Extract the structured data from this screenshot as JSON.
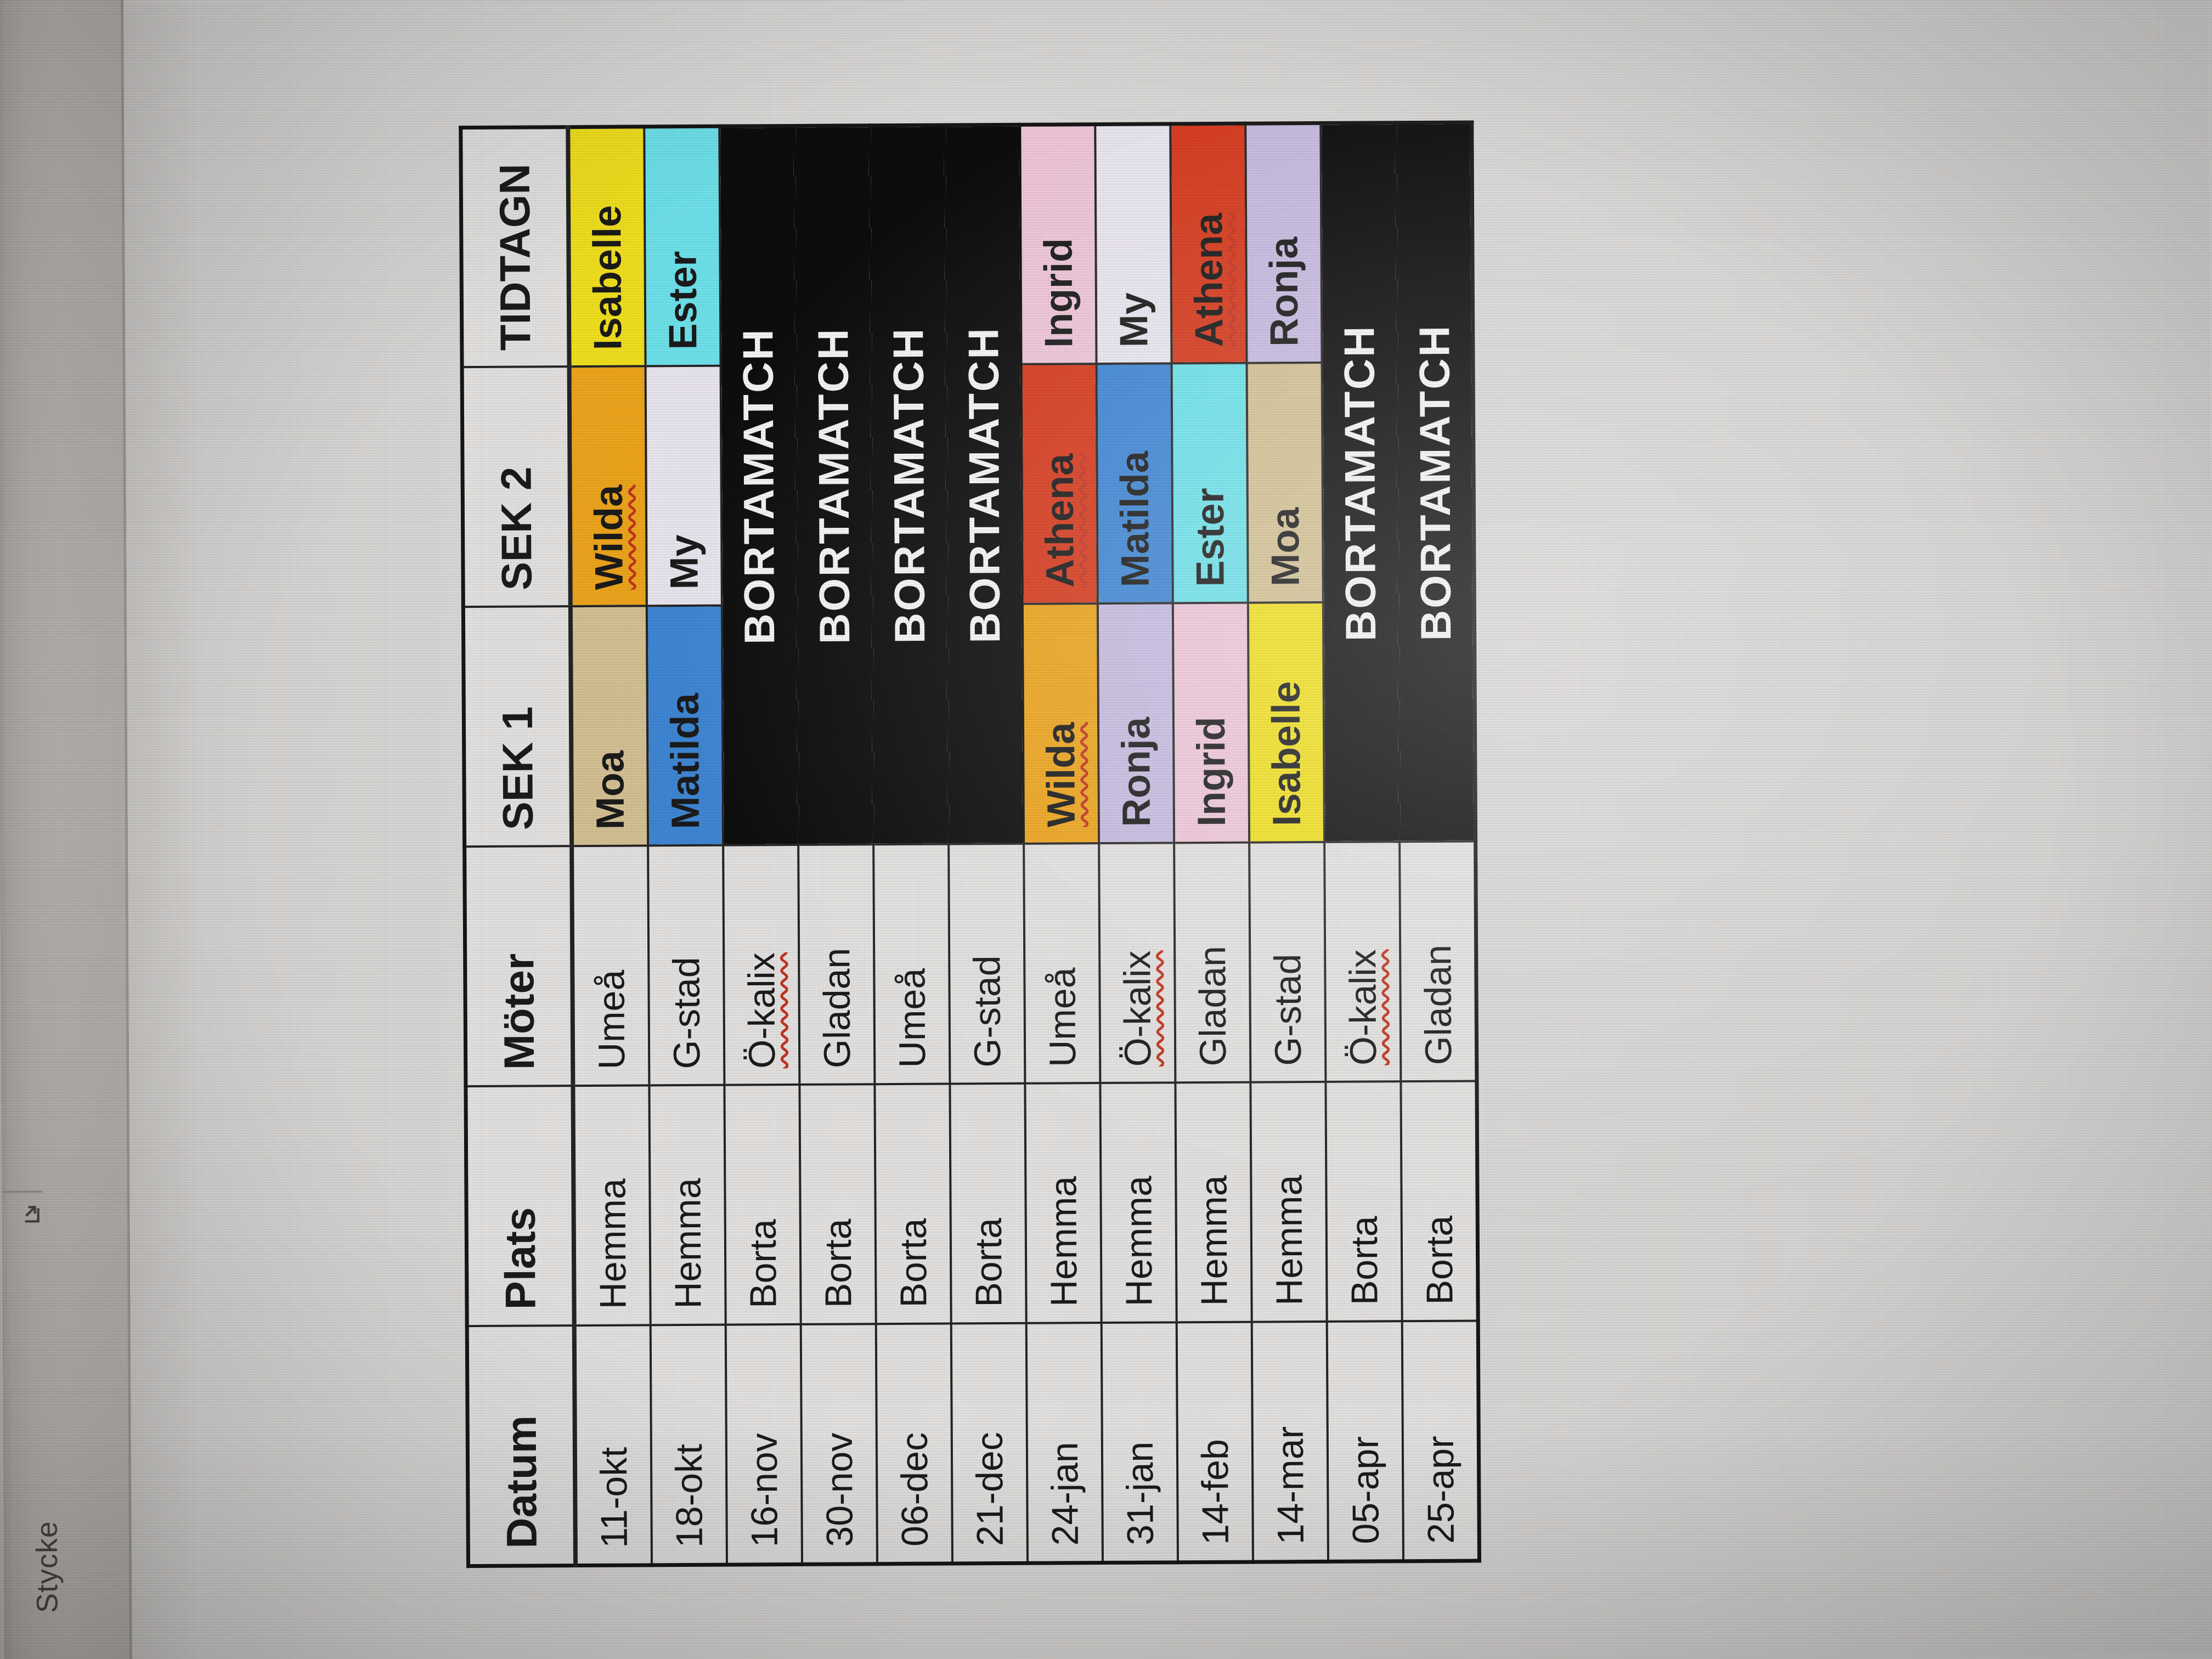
{
  "ribbon": {
    "group_label": "Stycke",
    "dialog_launcher_icon": "dialog-launcher-diagonal-arrow"
  },
  "table": {
    "headers": [
      "Datum",
      "Plats",
      "Möter",
      "SEK 1",
      "SEK 2",
      "TIDTAGN"
    ],
    "bortamatch_label": "BORTAMATCH",
    "player_colors": {
      "Moa": "#d3c093",
      "Matilda": "#3f86d4",
      "Wilda": "#eca41d",
      "My": "#e9e5ef",
      "Ronja": "#c6badf",
      "Ingrid": "#eec5d8",
      "Isabelle": "#f0df1f",
      "Ester": "#6ee1ea",
      "Athena": "#d63b1e"
    },
    "rows": [
      {
        "datum": "11-okt",
        "plats": "Hemma",
        "moter": "Umeå",
        "sek1": "Moa",
        "sek2": "Wilda",
        "tidtagn": "Isabelle",
        "bortamatch": false,
        "misspelled": [
          "sek2"
        ]
      },
      {
        "datum": "18-okt",
        "plats": "Hemma",
        "moter": "G-stad",
        "sek1": "Matilda",
        "sek2": "My",
        "tidtagn": "Ester",
        "bortamatch": false,
        "misspelled": []
      },
      {
        "datum": "16-nov",
        "plats": "Borta",
        "moter": "Ö-kalix",
        "sek1": "",
        "sek2": "",
        "tidtagn": "",
        "bortamatch": true,
        "misspelled": [
          "moter"
        ]
      },
      {
        "datum": "30-nov",
        "plats": "Borta",
        "moter": "Gladan",
        "sek1": "",
        "sek2": "",
        "tidtagn": "",
        "bortamatch": true,
        "misspelled": []
      },
      {
        "datum": "06-dec",
        "plats": "Borta",
        "moter": "Umeå",
        "sek1": "",
        "sek2": "",
        "tidtagn": "",
        "bortamatch": true,
        "misspelled": []
      },
      {
        "datum": "21-dec",
        "plats": "Borta",
        "moter": "G-stad",
        "sek1": "",
        "sek2": "",
        "tidtagn": "",
        "bortamatch": true,
        "misspelled": []
      },
      {
        "datum": "24-jan",
        "plats": "Hemma",
        "moter": "Umeå",
        "sek1": "Wilda",
        "sek2": "Athena",
        "tidtagn": "Ingrid",
        "bortamatch": false,
        "misspelled": [
          "sek1",
          "sek2"
        ]
      },
      {
        "datum": "31-jan",
        "plats": "Hemma",
        "moter": "Ö-kalix",
        "sek1": "Ronja",
        "sek2": "Matilda",
        "tidtagn": "My",
        "bortamatch": false,
        "misspelled": [
          "moter"
        ]
      },
      {
        "datum": "14-feb",
        "plats": "Hemma",
        "moter": "Gladan",
        "sek1": "Ingrid",
        "sek2": "Ester",
        "tidtagn": "Athena",
        "bortamatch": false,
        "misspelled": [
          "tidtagn"
        ]
      },
      {
        "datum": "14-mar",
        "plats": "Hemma",
        "moter": "G-stad",
        "sek1": "Isabelle",
        "sek2": "Moa",
        "tidtagn": "Ronja",
        "bortamatch": false,
        "misspelled": []
      },
      {
        "datum": "05-apr",
        "plats": "Borta",
        "moter": "Ö-kalix",
        "sek1": "",
        "sek2": "",
        "tidtagn": "",
        "bortamatch": true,
        "misspelled": [
          "moter"
        ]
      },
      {
        "datum": "25-apr",
        "plats": "Borta",
        "moter": "Gladan",
        "sek1": "",
        "sek2": "",
        "tidtagn": "",
        "bortamatch": true,
        "misspelled": []
      }
    ]
  }
}
